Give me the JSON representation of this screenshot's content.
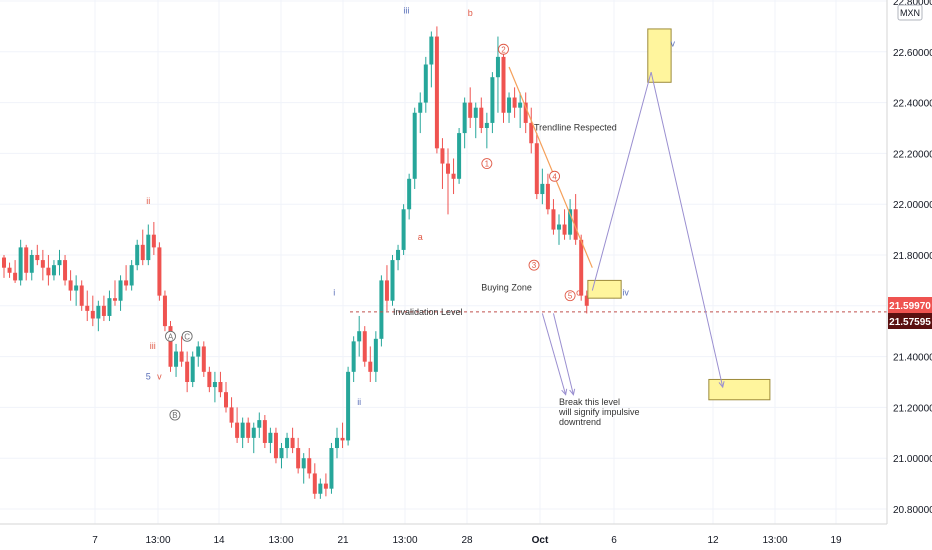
{
  "symbol": {
    "currency": "MXN"
  },
  "colors": {
    "up": "#26a69a",
    "down": "#ef5350",
    "wave_red": "#e05a47",
    "wave_blue": "#5a6fb8",
    "wave_gray": "#6d6d6d",
    "trend": "#f5a05a",
    "projection": "#9a8fd0",
    "zone_fill": "#fff59d",
    "zone_border": "#9c8a3a",
    "tag_last": "#ef5350",
    "tag_level": "#5a1010"
  },
  "chart_data": {
    "type": "candlestick",
    "price_scale": {
      "ylim": [
        20.72,
        22.78
      ],
      "ticks": [
        "20.80000",
        "21.00000",
        "21.20000",
        "21.40000",
        "21.60000",
        "21.80000",
        "22.00000",
        "22.20000",
        "22.40000",
        "22.60000",
        "22.80000"
      ]
    },
    "time_axis": {
      "labels": [
        "7",
        "13:00",
        "14",
        "13:00",
        "21",
        "13:00",
        "28",
        "Oct",
        "6",
        "12",
        "13:00",
        "19"
      ]
    },
    "price_tags": {
      "last": "21.59970",
      "level": "21.57595"
    },
    "invalidation_level": {
      "value": 21.57595,
      "label": "Invalidation Level"
    },
    "candles": [
      [
        21.79,
        21.8,
        21.71,
        21.75
      ],
      [
        21.75,
        21.77,
        21.71,
        21.73
      ],
      [
        21.73,
        21.78,
        21.69,
        21.7
      ],
      [
        21.7,
        21.86,
        21.68,
        21.83
      ],
      [
        21.83,
        21.84,
        21.7,
        21.73
      ],
      [
        21.73,
        21.82,
        21.7,
        21.8
      ],
      [
        21.8,
        21.84,
        21.76,
        21.78
      ],
      [
        21.78,
        21.82,
        21.7,
        21.75
      ],
      [
        21.75,
        21.8,
        21.68,
        21.72
      ],
      [
        21.72,
        21.78,
        21.7,
        21.76
      ],
      [
        21.76,
        21.82,
        21.72,
        21.78
      ],
      [
        21.78,
        21.8,
        21.68,
        21.7
      ],
      [
        21.7,
        21.74,
        21.62,
        21.66
      ],
      [
        21.66,
        21.72,
        21.6,
        21.68
      ],
      [
        21.68,
        21.7,
        21.58,
        21.6
      ],
      [
        21.6,
        21.66,
        21.54,
        21.58
      ],
      [
        21.58,
        21.64,
        21.52,
        21.55
      ],
      [
        21.55,
        21.62,
        21.5,
        21.6
      ],
      [
        21.6,
        21.64,
        21.54,
        21.56
      ],
      [
        21.56,
        21.66,
        21.54,
        21.63
      ],
      [
        21.63,
        21.7,
        21.6,
        21.62
      ],
      [
        21.62,
        21.72,
        21.58,
        21.7
      ],
      [
        21.7,
        21.76,
        21.66,
        21.68
      ],
      [
        21.68,
        21.78,
        21.66,
        21.76
      ],
      [
        21.76,
        21.86,
        21.74,
        21.84
      ],
      [
        21.84,
        21.9,
        21.76,
        21.78
      ],
      [
        21.78,
        21.92,
        21.76,
        21.88
      ],
      [
        21.88,
        21.93,
        21.8,
        21.83
      ],
      [
        21.83,
        21.85,
        21.62,
        21.64
      ],
      [
        21.64,
        21.66,
        21.5,
        21.52
      ],
      [
        21.52,
        21.54,
        21.34,
        21.36
      ],
      [
        21.36,
        21.45,
        21.32,
        21.42
      ],
      [
        21.42,
        21.48,
        21.36,
        21.38
      ],
      [
        21.38,
        21.42,
        21.26,
        21.3
      ],
      [
        21.3,
        21.42,
        21.28,
        21.4
      ],
      [
        21.4,
        21.46,
        21.36,
        21.44
      ],
      [
        21.44,
        21.46,
        21.32,
        21.34
      ],
      [
        21.34,
        21.36,
        21.26,
        21.28
      ],
      [
        21.28,
        21.34,
        21.22,
        21.3
      ],
      [
        21.3,
        21.34,
        21.24,
        21.26
      ],
      [
        21.26,
        21.3,
        21.18,
        21.2
      ],
      [
        21.2,
        21.24,
        21.12,
        21.14
      ],
      [
        21.14,
        21.2,
        21.06,
        21.08
      ],
      [
        21.08,
        21.16,
        21.04,
        21.14
      ],
      [
        21.14,
        21.16,
        21.06,
        21.08
      ],
      [
        21.08,
        21.14,
        21.02,
        21.12
      ],
      [
        21.12,
        21.18,
        21.08,
        21.15
      ],
      [
        21.15,
        21.17,
        21.04,
        21.06
      ],
      [
        21.06,
        21.12,
        21.02,
        21.1
      ],
      [
        21.1,
        21.12,
        20.98,
        21.0
      ],
      [
        21.0,
        21.06,
        20.96,
        21.04
      ],
      [
        21.04,
        21.1,
        21.0,
        21.08
      ],
      [
        21.08,
        21.12,
        21.02,
        21.04
      ],
      [
        21.04,
        21.08,
        20.94,
        20.96
      ],
      [
        20.96,
        21.02,
        20.9,
        21.0
      ],
      [
        21.0,
        21.04,
        20.92,
        20.94
      ],
      [
        20.94,
        20.98,
        20.84,
        20.86
      ],
      [
        20.86,
        20.92,
        20.84,
        20.9
      ],
      [
        20.9,
        20.94,
        20.85,
        20.88
      ],
      [
        20.88,
        21.06,
        20.86,
        21.04
      ],
      [
        21.04,
        21.12,
        21.0,
        21.08
      ],
      [
        21.08,
        21.14,
        21.04,
        21.07
      ],
      [
        21.07,
        21.36,
        21.05,
        21.34
      ],
      [
        21.34,
        21.48,
        21.3,
        21.46
      ],
      [
        21.46,
        21.56,
        21.4,
        21.5
      ],
      [
        21.5,
        21.52,
        21.36,
        21.38
      ],
      [
        21.38,
        21.44,
        21.3,
        21.34
      ],
      [
        21.34,
        21.5,
        21.3,
        21.47
      ],
      [
        21.47,
        21.72,
        21.44,
        21.7
      ],
      [
        21.7,
        21.76,
        21.58,
        21.62
      ],
      [
        21.62,
        21.8,
        21.6,
        21.78
      ],
      [
        21.78,
        21.84,
        21.74,
        21.82
      ],
      [
        21.82,
        22.0,
        21.8,
        21.98
      ],
      [
        21.98,
        22.12,
        21.94,
        22.1
      ],
      [
        22.1,
        22.38,
        22.06,
        22.36
      ],
      [
        22.36,
        22.44,
        22.28,
        22.4
      ],
      [
        22.4,
        22.58,
        22.36,
        22.55
      ],
      [
        22.55,
        22.68,
        22.46,
        22.66
      ],
      [
        22.66,
        22.7,
        22.2,
        22.22
      ],
      [
        22.22,
        22.26,
        22.06,
        22.16
      ],
      [
        22.16,
        22.22,
        21.96,
        22.12
      ],
      [
        22.12,
        22.18,
        22.04,
        22.1
      ],
      [
        22.1,
        22.3,
        22.08,
        22.28
      ],
      [
        22.28,
        22.42,
        22.22,
        22.4
      ],
      [
        22.4,
        22.46,
        22.3,
        22.34
      ],
      [
        22.34,
        22.4,
        22.26,
        22.38
      ],
      [
        22.38,
        22.42,
        22.28,
        22.3
      ],
      [
        22.3,
        22.36,
        22.22,
        22.32
      ],
      [
        22.32,
        22.52,
        22.28,
        22.5
      ],
      [
        22.5,
        22.66,
        22.36,
        22.58
      ],
      [
        22.58,
        22.62,
        22.32,
        22.36
      ],
      [
        22.36,
        22.44,
        22.32,
        22.42
      ],
      [
        22.42,
        22.46,
        22.34,
        22.38
      ],
      [
        22.38,
        22.44,
        22.3,
        22.4
      ],
      [
        22.4,
        22.44,
        22.28,
        22.32
      ],
      [
        22.32,
        22.38,
        22.2,
        22.24
      ],
      [
        22.24,
        22.28,
        22.02,
        22.04
      ],
      [
        22.04,
        22.14,
        22.0,
        22.08
      ],
      [
        22.08,
        22.12,
        21.96,
        21.98
      ],
      [
        21.98,
        22.02,
        21.88,
        21.9
      ],
      [
        21.9,
        21.96,
        21.84,
        21.92
      ],
      [
        21.92,
        21.98,
        21.86,
        21.88
      ],
      [
        21.88,
        22.02,
        21.86,
        21.98
      ],
      [
        21.98,
        22.04,
        21.84,
        21.86
      ],
      [
        21.86,
        21.88,
        21.62,
        21.64
      ],
      [
        21.64,
        21.66,
        21.57,
        21.6
      ]
    ],
    "zones": [
      {
        "name": "Buying Zone",
        "x1": 105.2,
        "x2": 111.2,
        "y_low": 21.63,
        "y_high": 21.7
      },
      {
        "name": "v",
        "x1": 116.0,
        "x2": 120.2,
        "y_low": 22.48,
        "y_high": 22.69
      },
      {
        "name": "target",
        "x1": 127.0,
        "x2": 138.0,
        "y_low": 21.23,
        "y_high": 21.31
      }
    ],
    "trendline": {
      "label": "Trendline Respected",
      "points": [
        [
          91.0,
          22.54
        ],
        [
          106.0,
          21.75
        ]
      ]
    },
    "projections": [
      [
        [
          106.0,
          21.66
        ],
        [
          116.6,
          22.52
        ],
        [
          129.5,
          21.28
        ]
      ],
      [
        [
          97.0,
          21.57
        ],
        [
          101.2,
          21.25
        ]
      ],
      [
        [
          99.0,
          21.57
        ],
        [
          102.6,
          21.25
        ]
      ]
    ],
    "wave_labels": [
      {
        "text": "ii",
        "x": 26.0,
        "y": 22.0,
        "color": "red"
      },
      {
        "text": "iii",
        "x": 26.8,
        "y": 21.43,
        "color": "red"
      },
      {
        "text": "v",
        "x": 28.0,
        "y": 21.31,
        "color": "red"
      },
      {
        "text": "5",
        "x": 26.0,
        "y": 21.31,
        "color": "blue"
      },
      {
        "text": "a",
        "x": 75.0,
        "y": 21.86,
        "color": "red"
      },
      {
        "text": "b",
        "x": 84.0,
        "y": 22.74,
        "color": "red"
      },
      {
        "text": "iii",
        "x": 72.5,
        "y": 22.75,
        "color": "blue"
      },
      {
        "text": "i",
        "x": 59.5,
        "y": 21.64,
        "color": "blue"
      },
      {
        "text": "ii",
        "x": 64.0,
        "y": 21.21,
        "color": "blue"
      },
      {
        "text": "iv",
        "x": 112.0,
        "y": 21.64,
        "color": "blue"
      },
      {
        "text": "v",
        "x": 120.5,
        "y": 22.62,
        "color": "blue"
      },
      {
        "text": "c",
        "x": 103.5,
        "y": 21.64,
        "color": "red"
      }
    ],
    "circled_labels": [
      {
        "text": "1",
        "x": 87.0,
        "y": 22.16,
        "color": "red"
      },
      {
        "text": "2",
        "x": 90.0,
        "y": 22.61,
        "color": "red"
      },
      {
        "text": "3",
        "x": 95.5,
        "y": 21.76,
        "color": "red"
      },
      {
        "text": "4",
        "x": 99.2,
        "y": 22.11,
        "color": "red"
      },
      {
        "text": "5",
        "x": 102.0,
        "y": 21.64,
        "color": "red"
      },
      {
        "text": "A",
        "x": 30.0,
        "y": 21.48,
        "color": "gray"
      },
      {
        "text": "C",
        "x": 33.0,
        "y": 21.48,
        "color": "gray"
      },
      {
        "text": "B",
        "x": 30.8,
        "y": 21.17,
        "color": "gray"
      }
    ],
    "text_notes": [
      {
        "text": "Trendline Respected",
        "x": 95.5,
        "y": 22.29
      },
      {
        "text": "Buying Zone",
        "x": 86.0,
        "y": 21.66
      },
      {
        "text": "Break this level",
        "x": 100.0,
        "y": 21.21
      },
      {
        "text": "will signify impulsive",
        "x": 100.0,
        "y": 21.17
      },
      {
        "text": "downtrend",
        "x": 100.0,
        "y": 21.13
      }
    ]
  }
}
